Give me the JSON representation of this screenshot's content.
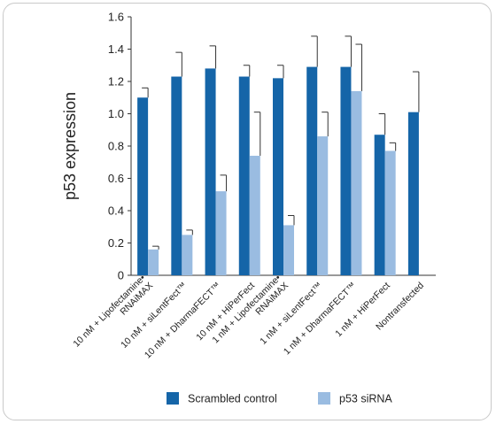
{
  "chart_data": {
    "type": "bar",
    "ylabel": "p53 expression",
    "ylim": [
      0,
      1.6
    ],
    "yticks": [
      "0",
      "0.2",
      "0.4",
      "0.6",
      "0.8",
      "1.0",
      "1.2",
      "1.4",
      "1.6"
    ],
    "categories": [
      [
        "10 nM + Lipofectamine•",
        "RNAiMAX"
      ],
      [
        "10 nM + siLentFect™"
      ],
      [
        "10 nM + DharmaFECT™"
      ],
      [
        "10 nM + HiPerFect"
      ],
      [
        "1 nM + Lipofectamine•",
        "RNAiMAX"
      ],
      [
        "1 nM + siLentFect™"
      ],
      [
        "1 nM + DharmaFECT™"
      ],
      [
        "1 nM + HiPerFect"
      ],
      [
        "Nontransfected"
      ]
    ],
    "series": [
      {
        "name": "Scrambled control",
        "color": "#1565a8",
        "values": [
          1.1,
          1.23,
          1.28,
          1.23,
          1.22,
          1.29,
          1.29,
          0.87,
          1.01
        ],
        "errors": [
          0.06,
          0.15,
          0.14,
          0.07,
          0.08,
          0.19,
          0.19,
          0.13,
          0.25
        ]
      },
      {
        "name": "p53 siRNA",
        "color": "#9abce1",
        "values": [
          0.16,
          0.25,
          0.52,
          0.74,
          0.31,
          0.86,
          1.14,
          0.77,
          null
        ],
        "errors": [
          0.02,
          0.03,
          0.1,
          0.27,
          0.06,
          0.15,
          0.29,
          0.05,
          null
        ]
      }
    ],
    "legend": "bottom",
    "grid": false
  }
}
